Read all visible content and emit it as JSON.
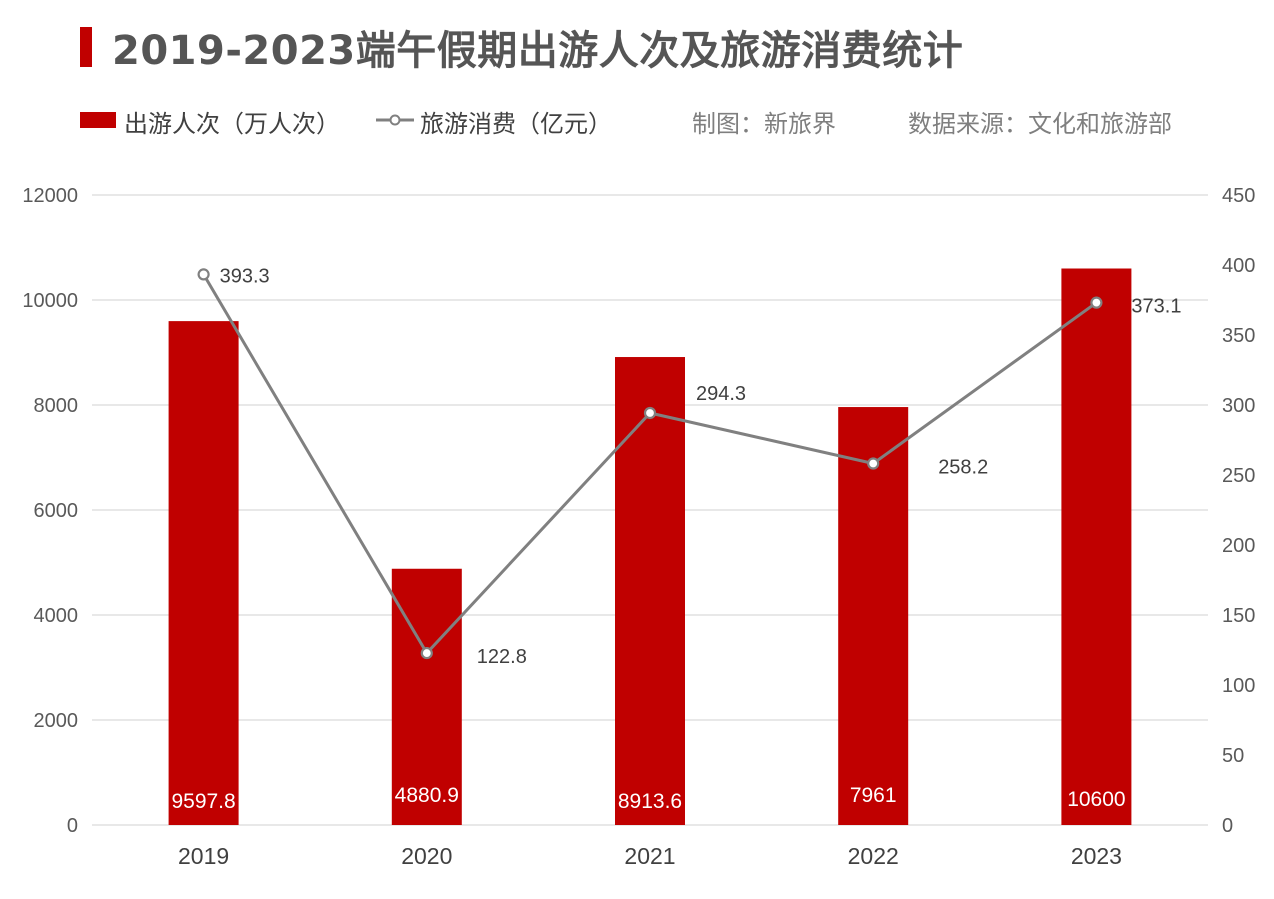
{
  "title": "2019-2023端午假期出游人次及旅游消费统计",
  "legend": {
    "bars_label": "出游人次（万人次）",
    "line_label": "旅游消费（亿元）",
    "credit": "制图：新旅界",
    "source": "数据来源：文化和旅游部"
  },
  "colors": {
    "bar": "#c00000",
    "line": "#808080",
    "grid": "#d9d9d9",
    "title_accent": "#c00000"
  },
  "chart_data": {
    "type": "bar+line",
    "categories": [
      "2019",
      "2020",
      "2021",
      "2022",
      "2023"
    ],
    "series": [
      {
        "name": "出游人次（万人次）",
        "type": "bar",
        "axis": "left",
        "values": [
          9597.8,
          4880.9,
          8913.6,
          7961,
          10600
        ],
        "labels": [
          "9597.8",
          "4880.9",
          "8913.6",
          "7961",
          "10600"
        ]
      },
      {
        "name": "旅游消费（亿元）",
        "type": "line",
        "axis": "right",
        "values": [
          393.3,
          122.8,
          294.3,
          258.2,
          373.1
        ],
        "labels": [
          "393.3",
          "122.8",
          "294.3",
          "258.2",
          "373.1"
        ]
      }
    ],
    "y_left": {
      "min": 0,
      "max": 12000,
      "ticks": [
        "0",
        "2000",
        "4000",
        "6000",
        "8000",
        "10000",
        "12000"
      ]
    },
    "y_right": {
      "min": 0,
      "max": 450,
      "ticks": [
        "0",
        "50",
        "100",
        "150",
        "200",
        "250",
        "300",
        "350",
        "400",
        "450"
      ]
    },
    "grid": true
  }
}
